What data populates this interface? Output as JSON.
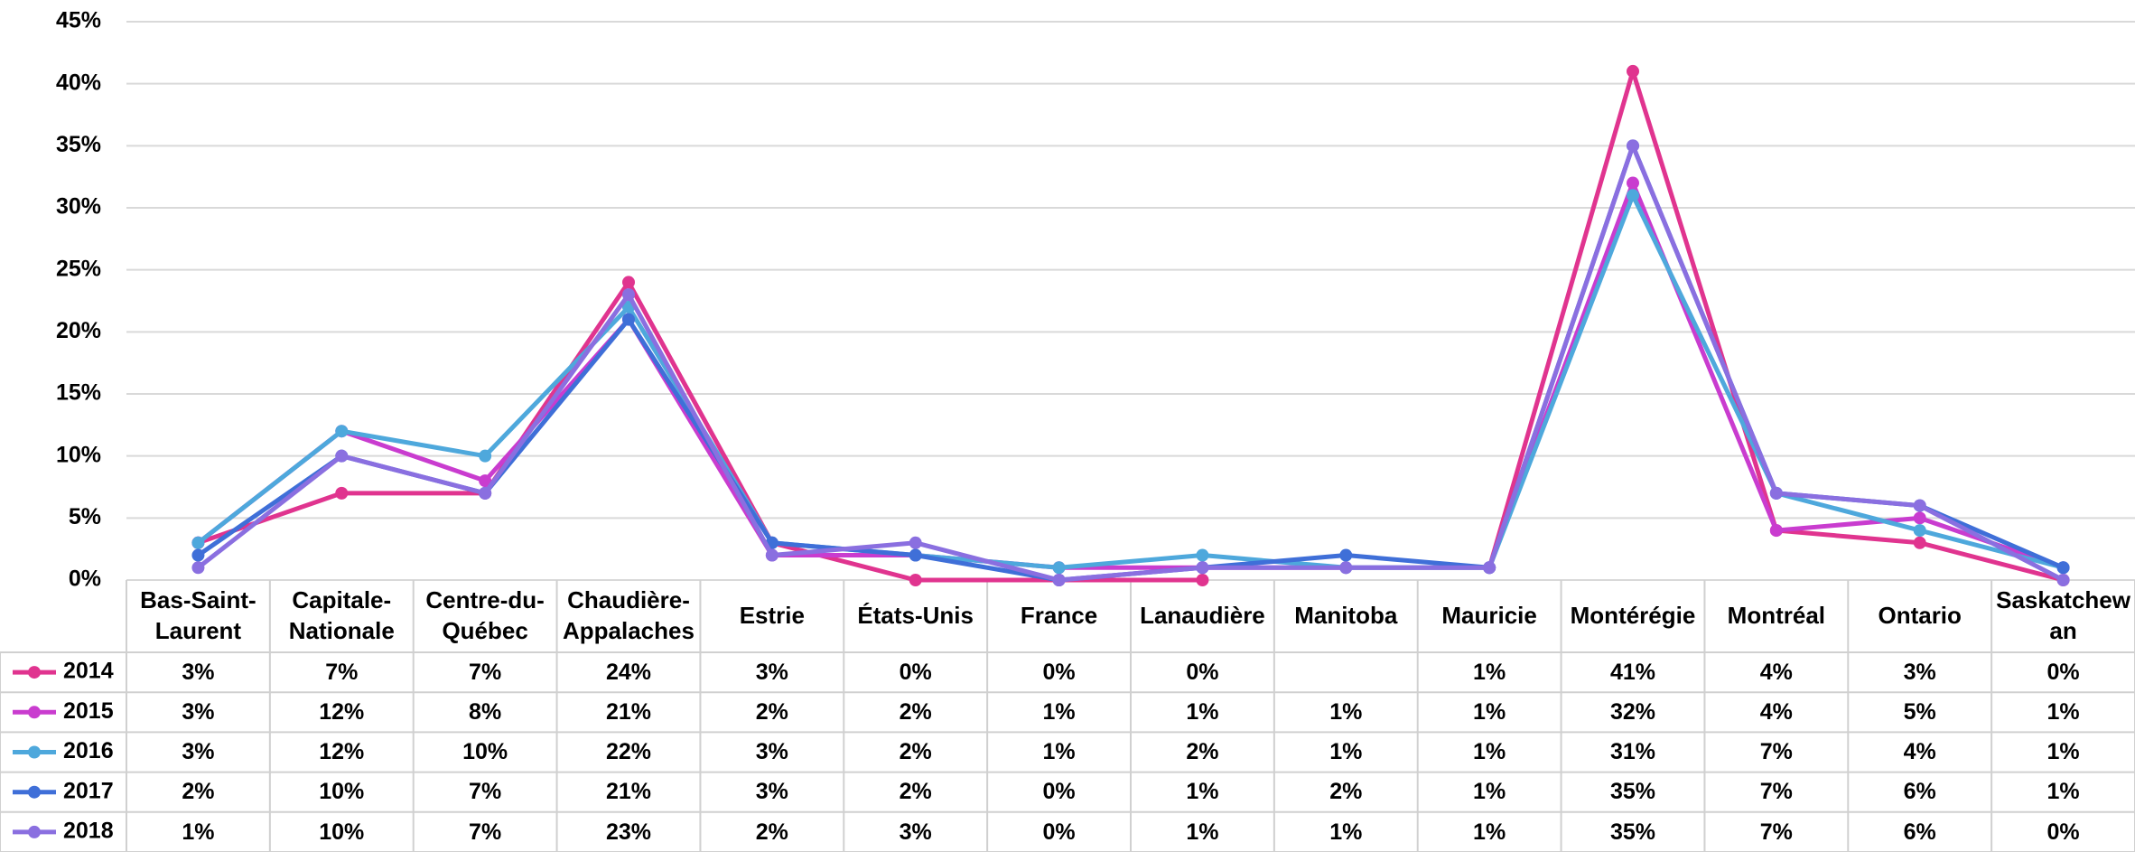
{
  "chart_data": {
    "type": "line",
    "categories": [
      "Bas-Saint-Laurent",
      "Capitale-Nationale",
      "Centre-du-Québec",
      "Chaudière-Appalaches",
      "Estrie",
      "États-Unis",
      "France",
      "Lanaudière",
      "Manitoba",
      "Mauricie",
      "Montérégie",
      "Montréal",
      "Ontario",
      "Saskatchewan"
    ],
    "series": [
      {
        "name": "2014",
        "color": "#e0348f",
        "values": [
          3,
          7,
          7,
          24,
          3,
          0,
          0,
          0,
          null,
          1,
          41,
          4,
          3,
          0
        ],
        "value_labels": [
          "3%",
          "7%",
          "7%",
          "24%",
          "3%",
          "0%",
          "0%",
          "0%",
          null,
          "1%",
          "41%",
          "4%",
          "3%",
          "0%"
        ]
      },
      {
        "name": "2015",
        "color": "#c93ccf",
        "values": [
          3,
          12,
          8,
          21,
          2,
          2,
          1,
          1,
          1,
          1,
          32,
          4,
          5,
          1
        ],
        "value_labels": [
          "3%",
          "12%",
          "8%",
          "21%",
          "2%",
          "2%",
          "1%",
          "1%",
          "1%",
          "1%",
          "32%",
          "4%",
          "5%",
          "1%"
        ]
      },
      {
        "name": "2016",
        "color": "#4ea8dc",
        "values": [
          3,
          12,
          10,
          22,
          3,
          2,
          1,
          2,
          1,
          1,
          31,
          7,
          4,
          1
        ],
        "value_labels": [
          "3%",
          "12%",
          "10%",
          "22%",
          "3%",
          "2%",
          "1%",
          "2%",
          "1%",
          "1%",
          "31%",
          "7%",
          "4%",
          "1%"
        ]
      },
      {
        "name": "2017",
        "color": "#3f6fd8",
        "values": [
          2,
          10,
          7,
          21,
          3,
          2,
          0,
          1,
          2,
          1,
          35,
          7,
          6,
          1
        ],
        "value_labels": [
          "2%",
          "10%",
          "7%",
          "21%",
          "3%",
          "2%",
          "0%",
          "1%",
          "2%",
          "1%",
          "35%",
          "7%",
          "6%",
          "1%"
        ]
      },
      {
        "name": "2018",
        "color": "#8a6fe0",
        "values": [
          1,
          10,
          7,
          23,
          2,
          3,
          0,
          1,
          1,
          1,
          35,
          7,
          6,
          0
        ],
        "value_labels": [
          "1%",
          "10%",
          "7%",
          "23%",
          "2%",
          "3%",
          "0%",
          "1%",
          "1%",
          "1%",
          "35%",
          "7%",
          "6%",
          "0%"
        ]
      }
    ],
    "ylim": [
      0,
      45
    ],
    "yticks": [
      {
        "value": 0,
        "label": "0%"
      },
      {
        "value": 5,
        "label": "5%"
      },
      {
        "value": 10,
        "label": "10%"
      },
      {
        "value": 15,
        "label": "15%"
      },
      {
        "value": 20,
        "label": "20%"
      },
      {
        "value": 25,
        "label": "25%"
      },
      {
        "value": 30,
        "label": "30%"
      },
      {
        "value": 35,
        "label": "35%"
      },
      {
        "value": 40,
        "label": "40%"
      },
      {
        "value": 45,
        "label": "45%"
      }
    ],
    "grid": true
  }
}
